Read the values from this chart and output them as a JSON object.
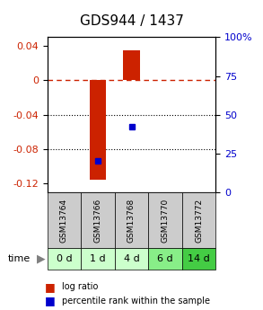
{
  "title": "GDS944 / 1437",
  "categories": [
    "GSM13764",
    "GSM13766",
    "GSM13768",
    "GSM13770",
    "GSM13772"
  ],
  "time_labels": [
    "0 d",
    "1 d",
    "4 d",
    "6 d",
    "14 d"
  ],
  "log_ratios": [
    0.0,
    -0.115,
    0.035,
    0.0,
    0.0
  ],
  "percentile_ranks": [
    null,
    0.2,
    0.42,
    null,
    null
  ],
  "bar_color": "#cc2200",
  "dot_color": "#0000cc",
  "ylim_left": [
    -0.13,
    0.05
  ],
  "ylim_right": [
    0,
    100
  ],
  "yticks_left": [
    0.04,
    0,
    -0.04,
    -0.08,
    -0.12
  ],
  "yticks_right": [
    100,
    75,
    50,
    25,
    0
  ],
  "zero_line_color": "#cc2200",
  "grid_color": "#000000",
  "cell_color_gsm": "#cccccc",
  "time_colors": [
    "#ccffcc",
    "#ccffcc",
    "#ccffcc",
    "#88ee88",
    "#44cc44"
  ],
  "bar_width": 0.5,
  "figsize": [
    2.93,
    3.45
  ],
  "dpi": 100
}
